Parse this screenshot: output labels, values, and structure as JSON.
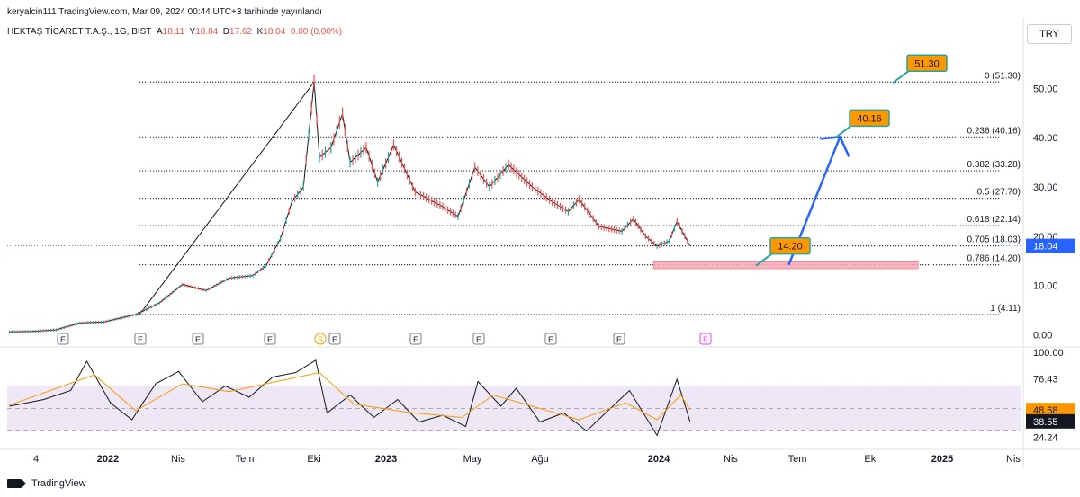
{
  "header": {
    "published": "keryalcin111 TradingView.com, Mar 09, 2024 00:44 UTC+3 tarihinde yayınlandı",
    "symbol": "HEKTAŞ TİCARET T.A.Ş., 1G, BIST",
    "o_label": "A",
    "o": "18.11",
    "h_label": "Y",
    "h": "18.84",
    "l_label": "D",
    "l": "17.62",
    "c_label": "K",
    "c": "18.04",
    "change": "0.00 (0.00%)",
    "currency": "TRY"
  },
  "footer": {
    "brand": "TradingView"
  },
  "colors": {
    "up": "#26a69a",
    "down": "#ef5350",
    "fib": "#131722",
    "arrow": "#2962ff",
    "zone": "#f7a8b8",
    "callout": "#ff9800",
    "rsi": "#131722",
    "rsi_ma": "#ff9800",
    "rsi_band": "#ede7f6"
  },
  "chart_data": [
    {
      "type": "line",
      "title": "HEKTAŞ TİCARET T.A.Ş., 1G, BIST",
      "x_tick_labels": [
        "4",
        "2022",
        "Nis",
        "Tem",
        "Eki",
        "2023",
        "May",
        "Ağu",
        "2024",
        "Nis",
        "Tem",
        "Eki",
        "2025",
        "Nis"
      ],
      "y_tick_labels": [
        "0.00",
        "10.00",
        "20.00",
        "30.00",
        "40.00",
        "50.00"
      ],
      "ylim": [
        -1,
        57
      ],
      "price_path": [
        {
          "x": "2021-10-01",
          "y": 0.6
        },
        {
          "x": "2021-11-01",
          "y": 0.7
        },
        {
          "x": "2021-12-01",
          "y": 1.0
        },
        {
          "x": "2022-01-01",
          "y": 2.4
        },
        {
          "x": "2022-02-01",
          "y": 2.6
        },
        {
          "x": "2022-03-15",
          "y": 4.1
        },
        {
          "x": "2022-04-15",
          "y": 6.5
        },
        {
          "x": "2022-05-15",
          "y": 10.2
        },
        {
          "x": "2022-06-15",
          "y": 9.0
        },
        {
          "x": "2022-07-15",
          "y": 11.5
        },
        {
          "x": "2022-08-15",
          "y": 12.0
        },
        {
          "x": "2022-09-01",
          "y": 14.0
        },
        {
          "x": "2022-09-20",
          "y": 19.5
        },
        {
          "x": "2022-10-05",
          "y": 27.0
        },
        {
          "x": "2022-10-20",
          "y": 30.0
        },
        {
          "x": "2022-11-03",
          "y": 51.3
        },
        {
          "x": "2022-11-10",
          "y": 36.0
        },
        {
          "x": "2022-11-25",
          "y": 38.0
        },
        {
          "x": "2022-12-10",
          "y": 44.8
        },
        {
          "x": "2022-12-20",
          "y": 35.0
        },
        {
          "x": "2023-01-10",
          "y": 38.0
        },
        {
          "x": "2023-01-25",
          "y": 31.0
        },
        {
          "x": "2023-02-15",
          "y": 38.5
        },
        {
          "x": "2023-03-15",
          "y": 29.0
        },
        {
          "x": "2023-04-20",
          "y": 26.0
        },
        {
          "x": "2023-05-10",
          "y": 24.0
        },
        {
          "x": "2023-06-01",
          "y": 34.0
        },
        {
          "x": "2023-06-20",
          "y": 30.0
        },
        {
          "x": "2023-07-15",
          "y": 34.5
        },
        {
          "x": "2023-08-15",
          "y": 30.0
        },
        {
          "x": "2023-09-10",
          "y": 27.0
        },
        {
          "x": "2023-10-01",
          "y": 25.0
        },
        {
          "x": "2023-10-15",
          "y": 27.5
        },
        {
          "x": "2023-11-10",
          "y": 22.0
        },
        {
          "x": "2023-12-10",
          "y": 21.0
        },
        {
          "x": "2023-12-25",
          "y": 23.5
        },
        {
          "x": "2024-01-10",
          "y": 20.0
        },
        {
          "x": "2024-01-25",
          "y": 18.0
        },
        {
          "x": "2024-02-10",
          "y": 19.0
        },
        {
          "x": "2024-02-20",
          "y": 23.0
        },
        {
          "x": "2024-03-08",
          "y": 18.04
        }
      ],
      "fib_levels": [
        {
          "ratio": "0",
          "value": 51.3,
          "label": "0 (51.30)"
        },
        {
          "ratio": "0.236",
          "value": 40.16,
          "label": "0.236 (40.16)"
        },
        {
          "ratio": "0.382",
          "value": 33.28,
          "label": "0.382 (33.28)"
        },
        {
          "ratio": "0.5",
          "value": 27.7,
          "label": "0.5 (27.70)"
        },
        {
          "ratio": "0.618",
          "value": 22.14,
          "label": "0.618 (22.14)"
        },
        {
          "ratio": "0.705",
          "value": 18.03,
          "label": "0.705 (18.03)"
        },
        {
          "ratio": "0.786",
          "value": 14.2,
          "label": "0.786 (14.20)"
        },
        {
          "ratio": "1",
          "value": 4.11,
          "label": "1 (4.11)"
        }
      ],
      "trend_line": [
        {
          "x": "2022-03-20",
          "y": 4.11
        },
        {
          "x": "2022-11-03",
          "y": 51.3
        }
      ],
      "support_zone": {
        "from": "2024-02-01",
        "to": "2024-12-31",
        "low": 13.4,
        "high": 15.0
      },
      "projection_arrow": [
        {
          "x": "2024-07-15",
          "y": 14.2
        },
        {
          "x": "2024-09-20",
          "y": 40.16
        }
      ],
      "callouts": [
        "51.30",
        "40.16",
        "14.20"
      ],
      "current_price": "18.04",
      "event_markers": [
        "E",
        "E",
        "E",
        "E",
        "S",
        "E",
        "E",
        "E",
        "E",
        "E",
        "E"
      ]
    },
    {
      "type": "line",
      "title": "",
      "y_tick_labels": [
        "100.00",
        "76.43",
        "24.24"
      ],
      "ylim": [
        20,
        100
      ],
      "band": [
        30,
        70
      ],
      "rsi_labels": [
        "48.68",
        "38.55"
      ],
      "rsi_path": [
        {
          "x": "2021-10-01",
          "y": 52
        },
        {
          "x": "2021-11-15",
          "y": 58
        },
        {
          "x": "2021-12-20",
          "y": 66
        },
        {
          "x": "2022-01-10",
          "y": 92
        },
        {
          "x": "2022-02-10",
          "y": 55
        },
        {
          "x": "2022-03-10",
          "y": 40
        },
        {
          "x": "2022-04-10",
          "y": 72
        },
        {
          "x": "2022-05-10",
          "y": 83
        },
        {
          "x": "2022-06-10",
          "y": 56
        },
        {
          "x": "2022-07-10",
          "y": 70
        },
        {
          "x": "2022-08-10",
          "y": 60
        },
        {
          "x": "2022-09-10",
          "y": 78
        },
        {
          "x": "2022-10-10",
          "y": 82
        },
        {
          "x": "2022-11-05",
          "y": 93
        },
        {
          "x": "2022-11-20",
          "y": 46
        },
        {
          "x": "2022-12-20",
          "y": 62
        },
        {
          "x": "2023-01-20",
          "y": 42
        },
        {
          "x": "2023-02-20",
          "y": 58
        },
        {
          "x": "2023-03-20",
          "y": 38
        },
        {
          "x": "2023-04-20",
          "y": 44
        },
        {
          "x": "2023-05-20",
          "y": 34
        },
        {
          "x": "2023-06-05",
          "y": 74
        },
        {
          "x": "2023-07-05",
          "y": 52
        },
        {
          "x": "2023-07-25",
          "y": 68
        },
        {
          "x": "2023-08-25",
          "y": 38
        },
        {
          "x": "2023-09-25",
          "y": 46
        },
        {
          "x": "2023-10-25",
          "y": 30
        },
        {
          "x": "2023-11-25",
          "y": 50
        },
        {
          "x": "2023-12-20",
          "y": 66
        },
        {
          "x": "2024-01-25",
          "y": 26
        },
        {
          "x": "2024-02-20",
          "y": 76
        },
        {
          "x": "2024-03-08",
          "y": 38.55
        }
      ],
      "rsi_ma_path": [
        {
          "x": "2021-10-01",
          "y": 53
        },
        {
          "x": "2022-01-20",
          "y": 80
        },
        {
          "x": "2022-03-15",
          "y": 48
        },
        {
          "x": "2022-05-15",
          "y": 72
        },
        {
          "x": "2022-07-15",
          "y": 65
        },
        {
          "x": "2022-09-15",
          "y": 74
        },
        {
          "x": "2022-11-10",
          "y": 82
        },
        {
          "x": "2022-12-25",
          "y": 54
        },
        {
          "x": "2023-03-01",
          "y": 47
        },
        {
          "x": "2023-05-15",
          "y": 42
        },
        {
          "x": "2023-06-25",
          "y": 62
        },
        {
          "x": "2023-08-15",
          "y": 52
        },
        {
          "x": "2023-10-15",
          "y": 40
        },
        {
          "x": "2023-12-15",
          "y": 55
        },
        {
          "x": "2024-01-25",
          "y": 40
        },
        {
          "x": "2024-02-25",
          "y": 62
        },
        {
          "x": "2024-03-08",
          "y": 48.68
        }
      ]
    }
  ]
}
